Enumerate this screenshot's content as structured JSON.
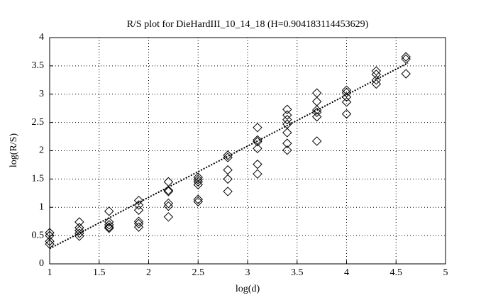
{
  "chart_data": {
    "type": "scatter",
    "title": "R/S plot for DieHardIII_10_14_18 (H=0.904183114453629)",
    "x_label": "log(d)",
    "y_label": "log(R/S)",
    "xlim": [
      1,
      5
    ],
    "ylim": [
      0,
      4
    ],
    "xticks": [
      1,
      1.5,
      2,
      2.5,
      3,
      3.5,
      4,
      4.5,
      5
    ],
    "yticks": [
      0,
      0.5,
      1,
      1.5,
      2,
      2.5,
      3,
      3.5,
      4
    ],
    "grid": true,
    "series": [
      {
        "type": "scatter",
        "color": "#000000",
        "x": [
          1,
          1,
          1,
          1,
          1.3,
          1.3,
          1.3,
          1.3,
          1.3,
          1.6,
          1.6,
          1.6,
          1.6,
          1.6,
          1.9,
          1.9,
          1.9,
          1.9,
          1.9,
          1.9,
          2.2,
          2.2,
          2.2,
          2.2,
          2.2,
          2.2,
          2.5,
          2.5,
          2.5,
          2.5,
          2.5,
          2.5,
          2.8,
          2.8,
          2.8,
          2.8,
          2.8,
          3.1,
          3.1,
          3.1,
          3.1,
          3.1,
          3.1,
          3.4,
          3.4,
          3.4,
          3.4,
          3.4,
          3.4,
          3.4,
          3.7,
          3.7,
          3.7,
          3.7,
          3.7,
          3.7,
          4,
          4,
          4,
          4,
          4,
          4.3,
          4.3,
          4.3,
          4.3,
          4.6,
          4.6,
          4.6
        ],
        "values": [
          0.55,
          0.5,
          0.4,
          0.35,
          0.74,
          0.64,
          0.59,
          0.54,
          0.49,
          0.93,
          0.74,
          0.69,
          0.65,
          0.63,
          1.12,
          1.04,
          0.95,
          0.75,
          0.71,
          0.65,
          1.45,
          1.3,
          1.28,
          1.07,
          1.02,
          0.83,
          1.53,
          1.49,
          1.45,
          1.4,
          1.14,
          1.1,
          1.92,
          1.88,
          1.66,
          1.5,
          1.28,
          2.41,
          2.19,
          2.16,
          2.04,
          1.76,
          1.59,
          2.73,
          2.63,
          2.55,
          2.47,
          2.32,
          2.13,
          2.01,
          3.02,
          2.87,
          2.72,
          2.68,
          2.6,
          2.17,
          3.07,
          3.03,
          2.95,
          2.86,
          2.65,
          3.41,
          3.35,
          3.25,
          3.18,
          3.66,
          3.62,
          3.36
        ]
      },
      {
        "type": "line",
        "color": "#000000",
        "x": [
          1,
          4.62
        ],
        "values": [
          0.27,
          3.55
        ]
      }
    ]
  }
}
